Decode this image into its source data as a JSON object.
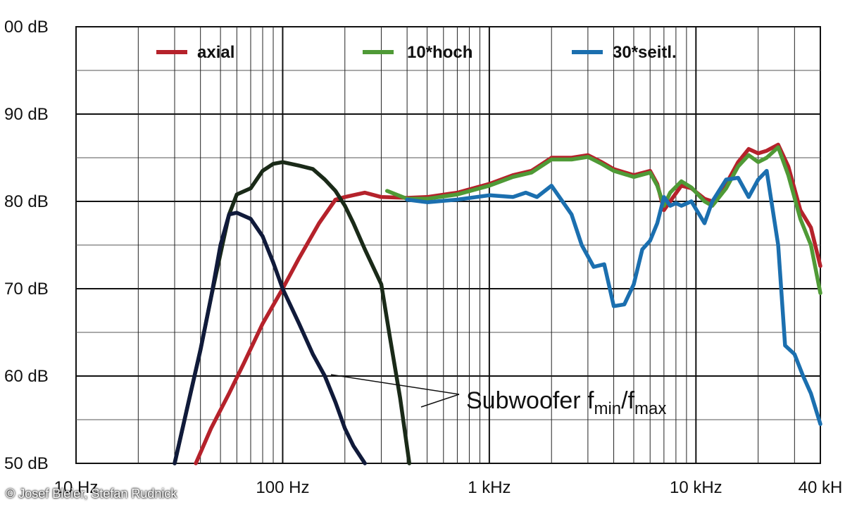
{
  "chart_data": {
    "type": "line",
    "xscale": "log",
    "xlim": [
      10,
      40000
    ],
    "ylim": [
      50,
      100
    ],
    "grid": true,
    "legend_position": "top",
    "y_ticks": [
      {
        "value": 100,
        "label": "00 dB"
      },
      {
        "value": 90,
        "label": "90 dB"
      },
      {
        "value": 80,
        "label": "80 dB"
      },
      {
        "value": 70,
        "label": "70 dB"
      },
      {
        "value": 60,
        "label": "60 dB"
      },
      {
        "value": 50,
        "label": "50 dB"
      }
    ],
    "x_ticks": [
      {
        "value": 10,
        "label": "10 Hz"
      },
      {
        "value": 100,
        "label": "100 Hz"
      },
      {
        "value": 1000,
        "label": "1 kHz"
      },
      {
        "value": 10000,
        "label": "10 kHz"
      },
      {
        "value": 40000,
        "label": "40 kH"
      }
    ],
    "series": [
      {
        "name": "axial",
        "color": "#b5222b",
        "x": [
          38,
          45,
          55,
          65,
          80,
          100,
          120,
          150,
          180,
          200,
          250,
          300,
          400,
          500,
          700,
          1000,
          1300,
          1600,
          2000,
          2500,
          3000,
          3500,
          4000,
          5000,
          6000,
          6500,
          7000,
          7500,
          8500,
          9500,
          11000,
          12000,
          14000,
          16000,
          18000,
          20000,
          22000,
          25000,
          28000,
          32000,
          36000,
          40000
        ],
        "y": [
          50,
          54,
          58,
          61.5,
          66,
          70,
          73.5,
          77.5,
          80.2,
          80.5,
          81,
          80.5,
          80.4,
          80.5,
          81,
          82,
          83,
          83.5,
          85,
          85,
          85.3,
          84.5,
          83.7,
          83,
          83.5,
          82,
          79,
          80,
          81.8,
          81.5,
          80.3,
          80,
          82,
          84.5,
          86,
          85.5,
          85.8,
          86.5,
          84,
          79,
          77,
          72.6
        ]
      },
      {
        "name": "10*hoch",
        "color": "#4f9a36",
        "x": [
          320,
          400,
          500,
          700,
          1000,
          1300,
          1600,
          2000,
          2500,
          3000,
          3500,
          4000,
          5000,
          6000,
          6500,
          7000,
          7500,
          8500,
          9500,
          11000,
          12000,
          14000,
          16000,
          18000,
          20000,
          22000,
          25000,
          28000,
          32000,
          36000,
          40000
        ],
        "y": [
          81.2,
          80.3,
          80.3,
          80.8,
          81.8,
          82.8,
          83.3,
          84.8,
          84.8,
          85.1,
          84.3,
          83.5,
          82.8,
          83.3,
          81.8,
          79.5,
          81,
          82.3,
          81.6,
          80,
          79.5,
          81.5,
          84,
          85.3,
          84.5,
          85,
          86.2,
          83,
          78,
          75,
          69.5
        ]
      },
      {
        "name": "30*seitl.",
        "color": "#1b6faf",
        "x": [
          400,
          500,
          700,
          1000,
          1300,
          1500,
          1700,
          2000,
          2500,
          2800,
          3200,
          3600,
          4000,
          4500,
          5000,
          5500,
          6000,
          6500,
          7000,
          7500,
          8000,
          8500,
          9500,
          11000,
          12000,
          14000,
          16000,
          18000,
          20000,
          22000,
          25000,
          27000,
          30000,
          33000,
          36000,
          40000
        ],
        "y": [
          80.2,
          79.9,
          80.2,
          80.7,
          80.5,
          81,
          80.5,
          81.8,
          78.5,
          75,
          72.5,
          72.8,
          68,
          68.2,
          70.5,
          74.5,
          75.5,
          77.5,
          80.5,
          79.5,
          79.8,
          79.5,
          80,
          77.5,
          80,
          82.5,
          82.7,
          80.5,
          82.5,
          83.5,
          75,
          63.5,
          62.5,
          60,
          58,
          54.5
        ]
      },
      {
        "x": [
          30,
          35,
          40,
          45,
          50,
          55,
          60,
          70,
          80,
          90,
          100,
          120,
          140,
          160,
          180,
          200,
          220,
          250,
          300,
          330,
          370,
          410
        ],
        "y": [
          50,
          57,
          63,
          69,
          74,
          78.5,
          80.8,
          81.5,
          83.5,
          84.3,
          84.5,
          84.1,
          83.7,
          82.5,
          81.2,
          79.5,
          77.5,
          74.5,
          70.5,
          64.5,
          57.5,
          50
        ],
        "color": "#1a2a18"
      },
      {
        "x": [
          30,
          35,
          40,
          45,
          50,
          55,
          60,
          70,
          80,
          90,
          100,
          120,
          140,
          160,
          180,
          200,
          220,
          250
        ],
        "y": [
          50,
          57,
          63,
          69,
          75,
          78.5,
          78.7,
          78,
          76,
          73,
          70,
          66,
          62.5,
          60,
          57,
          54,
          52,
          50
        ],
        "color": "#101a3a"
      }
    ],
    "annotation": {
      "text": "Subwoofer f",
      "sub1": "min",
      "slash": "/f",
      "sub2": "max"
    }
  },
  "credit": "© Josef Bleier, Stefan Rudnick"
}
